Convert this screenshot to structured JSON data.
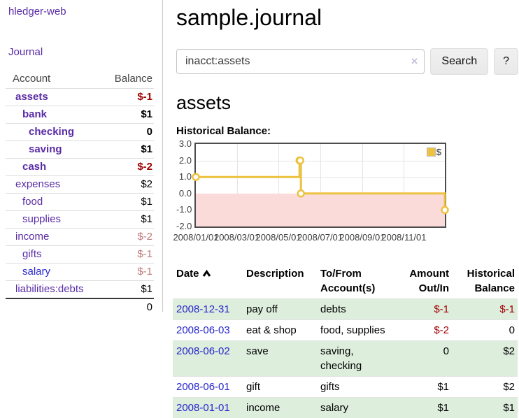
{
  "app": {
    "title": "hledger-web"
  },
  "sidebar": {
    "journal_link": "Journal",
    "accounts_table": {
      "headers": [
        "Account",
        "Balance"
      ],
      "rows": [
        {
          "name": "assets",
          "balance": "$-1"
        },
        {
          "name": "bank",
          "balance": "$1"
        },
        {
          "name": "checking",
          "balance": "0"
        },
        {
          "name": "saving",
          "balance": "$1"
        },
        {
          "name": "cash",
          "balance": "$-2"
        },
        {
          "name": "expenses",
          "balance": "$2"
        },
        {
          "name": "food",
          "balance": "$1"
        },
        {
          "name": "supplies",
          "balance": "$1"
        },
        {
          "name": "income",
          "balance": "$-2"
        },
        {
          "name": "gifts",
          "balance": "$-1"
        },
        {
          "name": "salary",
          "balance": "$-1"
        },
        {
          "name": "liabilities:debts",
          "balance": "$1"
        }
      ],
      "total": "0"
    }
  },
  "main": {
    "title": "sample.journal",
    "search": {
      "value": "inacct:assets",
      "clear_icon": "×",
      "button_label": "Search",
      "help_label": "?"
    },
    "account_heading": "assets"
  },
  "chart_data": {
    "type": "line",
    "title": "Historical Balance:",
    "step": true,
    "x_range": [
      "2008-01-01",
      "2008-12-31"
    ],
    "ylim": [
      -2,
      3
    ],
    "y_ticks": [
      "3.0",
      "2.0",
      "1.0",
      "0.0",
      "-1.0",
      "-2.0"
    ],
    "x_ticks": [
      "2008/01/01",
      "2008/03/01",
      "2008/05/01",
      "2008/07/01",
      "2008/09/01",
      "2008/11/01"
    ],
    "series": [
      {
        "name": "$",
        "color": "#edc240",
        "points": [
          {
            "date": "2008-01-01",
            "value": 1
          },
          {
            "date": "2008-06-01",
            "value": 2
          },
          {
            "date": "2008-06-02",
            "value": 2
          },
          {
            "date": "2008-06-03",
            "value": 0
          },
          {
            "date": "2008-12-31",
            "value": -1
          }
        ]
      }
    ],
    "negative_region_color": "#fbdada",
    "zero_line_color": "#8b0000",
    "legend_position": "top-right",
    "grid": true
  },
  "register_table": {
    "headers": [
      "Date",
      "Description",
      "To/From Account(s)",
      "Amount Out/In",
      "Historical Balance"
    ],
    "sorted_column": "Date",
    "sort_direction": "ascending",
    "rows": [
      {
        "date": "2008-12-31",
        "description": "pay off",
        "accounts": "debts",
        "amount": "$-1",
        "balance": "$-1"
      },
      {
        "date": "2008-06-03",
        "description": "eat & shop",
        "accounts": "food, supplies",
        "amount": "$-2",
        "balance": "0"
      },
      {
        "date": "2008-06-02",
        "description": "save",
        "accounts": "saving, checking",
        "amount": "0",
        "balance": "$2"
      },
      {
        "date": "2008-06-01",
        "description": "gift",
        "accounts": "gifts",
        "amount": "$1",
        "balance": "$2"
      },
      {
        "date": "2008-01-01",
        "description": "income",
        "accounts": "salary",
        "amount": "$1",
        "balance": "$1"
      }
    ]
  }
}
